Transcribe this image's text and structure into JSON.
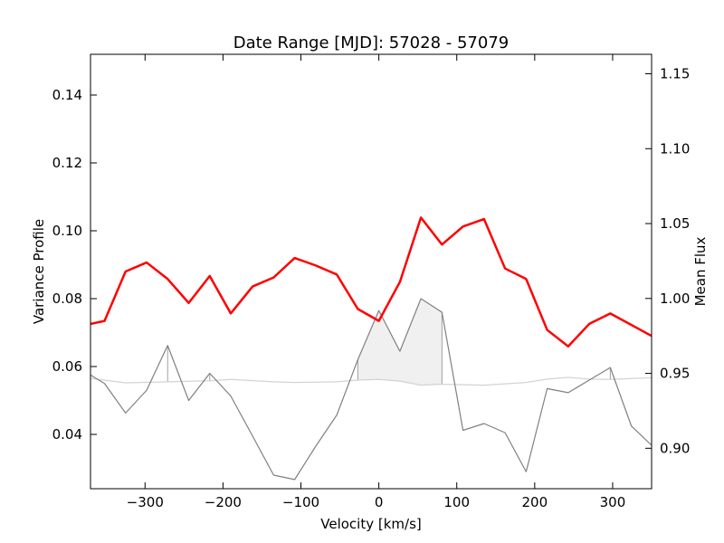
{
  "chart_data": {
    "type": "line",
    "title": "Date Range [MJD]: 57028 - 57079",
    "xlabel": "Velocity [km/s]",
    "ylabel_left": "Variance Profile",
    "ylabel_right": "Mean Flux",
    "xlim": [
      -370,
      350
    ],
    "ylim_left": [
      0.024,
      0.152
    ],
    "ylim_right": [
      0.873,
      1.163
    ],
    "x_ticks": [
      -300,
      -200,
      -100,
      0,
      100,
      200,
      300
    ],
    "x_tick_labels": [
      "−300",
      "−200",
      "−100",
      "0",
      "100",
      "200",
      "300"
    ],
    "y_left_ticks": [
      0.04,
      0.06,
      0.08,
      0.1,
      0.12,
      0.14
    ],
    "y_left_tick_labels": [
      "0.04",
      "0.06",
      "0.08",
      "0.10",
      "0.12",
      "0.14"
    ],
    "y_right_ticks": [
      0.9,
      0.95,
      1.0,
      1.05,
      1.1,
      1.15
    ],
    "y_right_tick_labels": [
      "0.90",
      "0.95",
      "1.00",
      "1.05",
      "1.10",
      "1.15"
    ],
    "grid": false,
    "series": [
      {
        "axis": "right",
        "color": "#ff0000",
        "points": [
          [
            -370,
            0.983
          ],
          [
            -352,
            0.985
          ],
          [
            -325,
            1.018
          ],
          [
            -298,
            1.024
          ],
          [
            -271,
            1.013
          ],
          [
            -244,
            0.997
          ],
          [
            -217,
            1.015
          ],
          [
            -190,
            0.99
          ],
          [
            -162,
            1.008
          ],
          [
            -135,
            1.014
          ],
          [
            -108,
            1.027
          ],
          [
            -81,
            1.022
          ],
          [
            -54,
            1.016
          ],
          [
            -27,
            0.993
          ],
          [
            0,
            0.985
          ],
          [
            27,
            1.011
          ],
          [
            54,
            1.054
          ],
          [
            81,
            1.036
          ],
          [
            108,
            1.048
          ],
          [
            135,
            1.053
          ],
          [
            162,
            1.02
          ],
          [
            189,
            1.013
          ],
          [
            216,
            0.979
          ],
          [
            243,
            0.968
          ],
          [
            270,
            0.983
          ],
          [
            297,
            0.99
          ],
          [
            350,
            0.975
          ]
        ]
      },
      {
        "axis": "left",
        "color": "#808080",
        "points": [
          [
            -370,
            0.0575
          ],
          [
            -352,
            0.055
          ],
          [
            -325,
            0.0463
          ],
          [
            -298,
            0.053
          ],
          [
            -271,
            0.0662
          ],
          [
            -244,
            0.05
          ],
          [
            -217,
            0.058
          ],
          [
            -190,
            0.0513
          ],
          [
            -162,
            0.0395
          ],
          [
            -135,
            0.028
          ],
          [
            -108,
            0.0267
          ],
          [
            -81,
            0.0365
          ],
          [
            -54,
            0.0457
          ],
          [
            -27,
            0.062
          ],
          [
            0,
            0.0765
          ],
          [
            27,
            0.0645
          ],
          [
            54,
            0.08
          ],
          [
            81,
            0.076
          ],
          [
            108,
            0.0412
          ],
          [
            135,
            0.0432
          ],
          [
            162,
            0.0405
          ],
          [
            189,
            0.029
          ],
          [
            216,
            0.0535
          ],
          [
            243,
            0.0523
          ],
          [
            270,
            0.056
          ],
          [
            297,
            0.0597
          ],
          [
            324,
            0.0425
          ],
          [
            350,
            0.0368
          ]
        ]
      },
      {
        "axis": "left",
        "color": "#d3d3d3",
        "points": [
          [
            -370,
            0.0565
          ],
          [
            -325,
            0.0552
          ],
          [
            -271,
            0.0555
          ],
          [
            -217,
            0.0558
          ],
          [
            -190,
            0.0562
          ],
          [
            -135,
            0.0555
          ],
          [
            -108,
            0.0553
          ],
          [
            -54,
            0.0555
          ],
          [
            -27,
            0.056
          ],
          [
            0,
            0.0562
          ],
          [
            27,
            0.0557
          ],
          [
            54,
            0.0545
          ],
          [
            81,
            0.0548
          ],
          [
            135,
            0.0545
          ],
          [
            189,
            0.0553
          ],
          [
            216,
            0.0563
          ],
          [
            243,
            0.0568
          ],
          [
            270,
            0.0563
          ],
          [
            297,
            0.0562
          ],
          [
            350,
            0.0567
          ]
        ]
      }
    ],
    "shaded_regions": [
      {
        "x": [
          -27,
          81
        ],
        "color": "#f0f0f0"
      }
    ],
    "highlight_markers": [
      -271,
      -217,
      -27,
      81,
      297
    ]
  }
}
